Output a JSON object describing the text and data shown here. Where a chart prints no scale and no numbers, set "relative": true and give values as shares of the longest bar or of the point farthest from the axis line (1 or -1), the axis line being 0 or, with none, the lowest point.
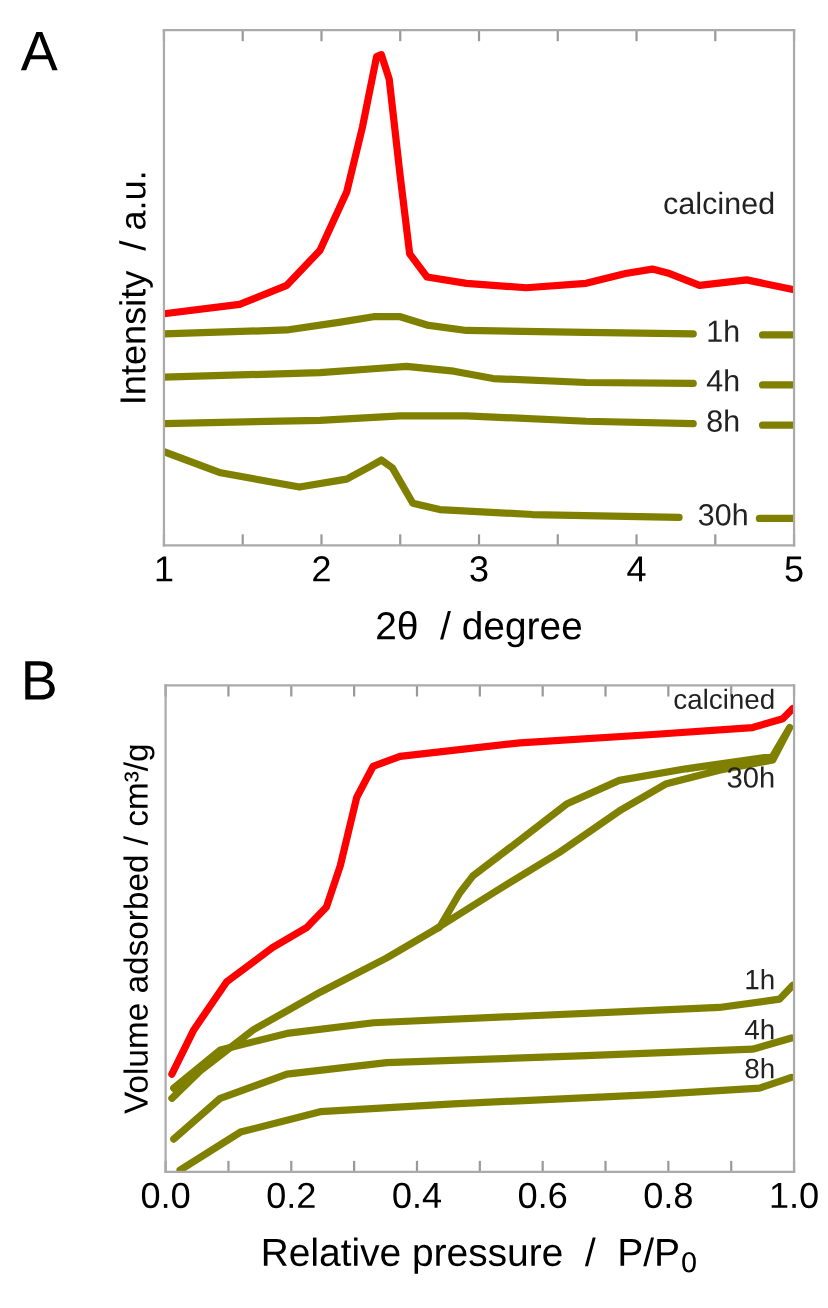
{
  "chart_data": [
    {
      "type": "line",
      "title": "A",
      "xlabel": "2θ  / degree",
      "ylabel": "Intensity  / a.u.",
      "relative": true,
      "grid": false,
      "legend": false,
      "marker": "none",
      "line_style": "solid",
      "xlim": [
        1,
        5
      ],
      "xticks": [
        1,
        {
          "value": 1.5,
          "label": null
        },
        2,
        {
          "value": 2.5,
          "label": null
        },
        3,
        {
          "value": 3.5,
          "label": null
        },
        4,
        {
          "value": 4.5,
          "label": null
        },
        5
      ],
      "series": [
        {
          "name": "calcined",
          "color": "#ff0000",
          "x": [
            1.0,
            1.48,
            1.78,
            1.99,
            2.16,
            2.26,
            2.35,
            2.38,
            2.43,
            2.5,
            2.56,
            2.67,
            2.92,
            3.3,
            3.68,
            3.93,
            4.1,
            4.21,
            4.4,
            4.7,
            5.0
          ],
          "values": [
            0.472,
            0.491,
            0.53,
            0.601,
            0.72,
            0.852,
            0.996,
            1.0,
            0.95,
            0.752,
            0.594,
            0.547,
            0.534,
            0.525,
            0.534,
            0.554,
            0.563,
            0.554,
            0.53,
            0.541,
            0.521
          ]
        },
        {
          "name": "1h",
          "color": "#808000",
          "x": [
            1.0,
            1.78,
            2.12,
            2.33,
            2.5,
            2.67,
            2.92,
            3.68,
            4.36,
            4.55,
            4.8,
            5.0
          ],
          "values": [
            0.431,
            0.439,
            0.455,
            0.466,
            0.466,
            0.449,
            0.438,
            0.434,
            0.431,
            null,
            0.429,
            0.429
          ]
        },
        {
          "name": "4h",
          "color": "#808000",
          "x": [
            1.0,
            1.99,
            2.33,
            2.54,
            2.84,
            3.09,
            3.68,
            4.36,
            4.55,
            4.8,
            5.0
          ],
          "values": [
            0.343,
            0.352,
            0.36,
            0.365,
            0.355,
            0.34,
            0.332,
            0.33,
            null,
            0.327,
            0.327
          ]
        },
        {
          "name": "8h",
          "color": "#808000",
          "x": [
            1.0,
            1.99,
            2.5,
            2.92,
            3.68,
            4.36,
            4.55,
            4.8,
            5.0
          ],
          "values": [
            0.248,
            0.255,
            0.264,
            0.264,
            0.253,
            0.248,
            null,
            0.245,
            0.245
          ]
        },
        {
          "name": "30h",
          "color": "#808000",
          "x": [
            1.0,
            1.36,
            1.86,
            2.16,
            2.31,
            2.38,
            2.45,
            2.58,
            2.75,
            3.34,
            4.27,
            4.55,
            4.78,
            5.0
          ],
          "values": [
            0.191,
            0.148,
            0.119,
            0.135,
            0.161,
            0.174,
            0.158,
            0.086,
            0.073,
            0.063,
            0.057,
            null,
            0.055,
            0.055
          ]
        }
      ]
    },
    {
      "type": "line",
      "title": "B",
      "xlabel": "Relative pressure  /  P/P$_{0}$",
      "ylabel": "Volume adsorbed / cm³/g",
      "relative": true,
      "grid": false,
      "legend": false,
      "marker": "none",
      "line_style": "solid",
      "xlim": [
        0,
        1
      ],
      "xticks": [
        {
          "value": 0,
          "label": "0.0"
        },
        {
          "value": 0.1,
          "label": null
        },
        0.2,
        {
          "value": 0.3,
          "label": null
        },
        0.4,
        {
          "value": 0.5,
          "label": null
        },
        0.6,
        {
          "value": 0.7,
          "label": null
        },
        0.8,
        {
          "value": 0.9,
          "label": null
        },
        {
          "value": 1,
          "label": "1.0"
        }
      ],
      "series": [
        {
          "name": "calcined",
          "color": "#ff0000",
          "x": [
            0.01,
            0.045,
            0.097,
            0.17,
            0.225,
            0.256,
            0.278,
            0.304,
            0.33,
            0.373,
            0.564,
            0.775,
            0.934,
            0.982,
            0.998
          ],
          "values": [
            0.211,
            0.307,
            0.41,
            0.484,
            0.528,
            0.572,
            0.661,
            0.808,
            0.875,
            0.897,
            0.926,
            0.944,
            0.959,
            0.978,
            1.0
          ]
        },
        {
          "name": "30h",
          "color": "#808000",
          "x": [
            0.01,
            0.055,
            0.14,
            0.246,
            0.352,
            0.426,
            0.521,
            0.627,
            0.722,
            0.797,
            0.881,
            0.966,
            0.993,
            0.966,
            0.828,
            0.722,
            0.638,
            0.553,
            0.489,
            0.468,
            0.436,
            0.426
          ],
          "values": [
            0.159,
            0.218,
            0.307,
            0.388,
            0.462,
            0.521,
            0.602,
            0.69,
            0.779,
            0.838,
            0.867,
            0.889,
            0.959,
            0.897,
            0.87,
            0.845,
            0.794,
            0.705,
            0.639,
            0.602,
            0.528,
            0.521
          ]
        },
        {
          "name": "1h",
          "color": "#808000",
          "x": [
            0.013,
            0.087,
            0.193,
            0.331,
            0.564,
            0.881,
            0.977,
            0.998
          ],
          "values": [
            0.181,
            0.263,
            0.299,
            0.322,
            0.336,
            0.355,
            0.373,
            0.403
          ]
        },
        {
          "name": "4h",
          "color": "#808000",
          "x": [
            0.013,
            0.087,
            0.193,
            0.352,
            0.669,
            0.934,
            0.996
          ],
          "values": [
            0.071,
            0.159,
            0.211,
            0.236,
            0.251,
            0.265,
            0.289
          ]
        },
        {
          "name": "8h",
          "color": "#808000",
          "x": [
            0.023,
            0.119,
            0.246,
            0.458,
            0.775,
            0.945,
            0.996
          ],
          "values": [
            0.004,
            0.086,
            0.13,
            0.147,
            0.167,
            0.181,
            0.204
          ]
        }
      ]
    }
  ]
}
